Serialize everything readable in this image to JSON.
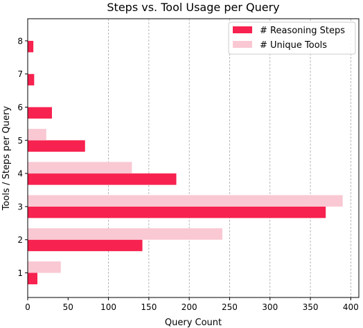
{
  "chart_data": {
    "type": "bar",
    "orientation": "horizontal",
    "title": "Steps vs. Tool Usage per Query",
    "xlabel": "Query Count",
    "ylabel": "Tools / Steps per Query",
    "categories": [
      "1",
      "2",
      "3",
      "4",
      "5",
      "6",
      "7",
      "8"
    ],
    "xlim": [
      0,
      410
    ],
    "xticks": [
      0,
      50,
      100,
      150,
      200,
      250,
      300,
      350,
      400
    ],
    "grid": "x-dashed-from-100",
    "legend_position": "top-right",
    "series": [
      {
        "name": "# Reasoning Steps",
        "color": "#f7224f",
        "values": [
          12,
          142,
          369,
          184,
          71,
          30,
          8,
          7
        ]
      },
      {
        "name": "# Unique Tools",
        "color": "#f9c8d3",
        "values": [
          41,
          241,
          390,
          129,
          23,
          0,
          0,
          0
        ]
      }
    ]
  }
}
